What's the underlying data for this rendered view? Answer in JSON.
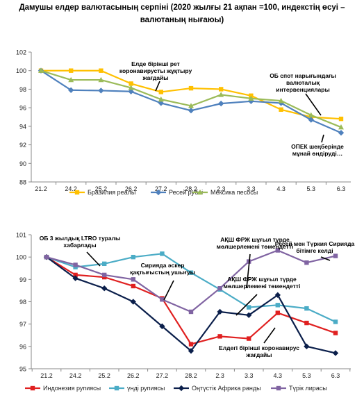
{
  "figure_title": "Дамушы елдер валютасының серпіні (2020 жылғы 21 ақпан =100, индекстің өсуі – валютаның нығаюы)",
  "chart_data": [
    {
      "type": "line",
      "categories": [
        "21.2",
        "24.2",
        "25.2",
        "26.2",
        "27.2",
        "28.2",
        "2.3",
        "3.3",
        "4.3",
        "5.3",
        "6.3"
      ],
      "ylim": [
        88,
        102
      ],
      "yticks": [
        "88",
        "90",
        "92",
        "94",
        "96",
        "98",
        "100",
        "102"
      ],
      "grid": false,
      "legend": "bottom",
      "series": [
        {
          "name": "Бразилия реалы",
          "color": "#FFC000",
          "marker": "square",
          "values": [
            100,
            100,
            100,
            98.6,
            97.7,
            98.1,
            98.0,
            97.3,
            95.8,
            95.0,
            94.8
          ]
        },
        {
          "name": "Ресей рублі",
          "color": "#4F81BD",
          "marker": "diamond",
          "values": [
            100,
            97.9,
            97.85,
            97.75,
            96.5,
            95.7,
            96.45,
            96.7,
            96.5,
            94.7,
            93.3
          ]
        },
        {
          "name": "Мексика песосы",
          "color": "#9BBB59",
          "marker": "triangle",
          "values": [
            100,
            99.0,
            99.0,
            98.15,
            96.9,
            96.2,
            97.4,
            97.0,
            96.75,
            95.2,
            93.9
          ]
        }
      ],
      "annotations": [
        {
          "text": "Елде бірінші рет коронавирусты жұқтыру жағдайы",
          "lines": [
            "Елде бірінші рет",
            "коронавирусты жұқтыру",
            "жағдайы"
          ]
        },
        {
          "text": "ОБ спот нарығындағы валюталық интервенциялары",
          "lines": [
            "ОБ спот нарығындағы",
            "валюталық",
            "интервенциялары"
          ]
        },
        {
          "text": "ОПЕК шеңберінде мұнай өндіруді…",
          "lines": [
            "ОПЕК шеңберінде",
            "мұнай өндіруді…"
          ]
        }
      ]
    },
    {
      "type": "line",
      "categories": [
        "21.2",
        "24.2",
        "25.2",
        "26.2",
        "27.2",
        "28.2",
        "2.3",
        "3.3",
        "4.3",
        "5.3",
        "6.3"
      ],
      "ylim": [
        95,
        101
      ],
      "yticks": [
        "95",
        "96",
        "97",
        "98",
        "99",
        "100",
        "101"
      ],
      "grid": false,
      "legend": "bottom",
      "series": [
        {
          "name": "Индонезия рупиясы",
          "color": "#E02020",
          "marker": "square",
          "values": [
            100,
            99.2,
            99.1,
            98.7,
            98.15,
            96.1,
            96.45,
            96.35,
            97.5,
            97.05,
            96.6
          ]
        },
        {
          "name": "үнді рупиясы",
          "color": "#4BACC6",
          "marker": "square",
          "values": [
            100,
            99.55,
            99.7,
            100.0,
            100.15,
            99.3,
            98.55,
            97.75,
            97.85,
            97.7,
            97.1
          ]
        },
        {
          "name": "Оңтүстік Африка ранды",
          "color": "#0B1F4B",
          "marker": "diamond",
          "values": [
            100,
            99.05,
            98.6,
            98.0,
            96.9,
            95.8,
            97.55,
            97.4,
            98.3,
            96.0,
            95.7
          ]
        },
        {
          "name": "Түрік лирасы",
          "color": "#8064A2",
          "marker": "square",
          "values": [
            100,
            99.65,
            99.2,
            99.0,
            98.1,
            97.55,
            98.6,
            99.8,
            100.3,
            99.75,
            100.05
          ]
        }
      ],
      "annotations": [
        {
          "text": "ОБ 3 жылдық LTRO туралы хабарлады",
          "lines": [
            "ОБ 3 жылдық LTRO туралы",
            "хабарлады"
          ]
        },
        {
          "text": "Сирияда әскер қақтығыстың ушығуы",
          "lines": [
            "Сирияда әскер",
            "қақтығыстың ушығуы"
          ]
        },
        {
          "text": "АҚШ ФРЖ шұғыл түрде мөлшерлемені төмендетті",
          "lines": [
            "АҚШ ФРЖ шұғыл түрде",
            "мөлшерлемені төмендетті"
          ]
        },
        {
          "text": "Ресей мен Түркия Сирияда бітімге келді",
          "lines": [
            "Ресей мен Түркия Сирияда",
            "бітімге келді"
          ]
        },
        {
          "text": "АҚШ ФРЖ шұғыл түрде мөлшерлемені төмендетті",
          "lines": [
            "АҚШ ФРЖ шұғыл түрде",
            "мөлшерлемені төмендетті"
          ]
        },
        {
          "text": "Елдегі бірінші коронавирус жағдайы",
          "lines": [
            "Елдегі бірінші коронавирус",
            "жағдайы"
          ]
        }
      ]
    }
  ]
}
